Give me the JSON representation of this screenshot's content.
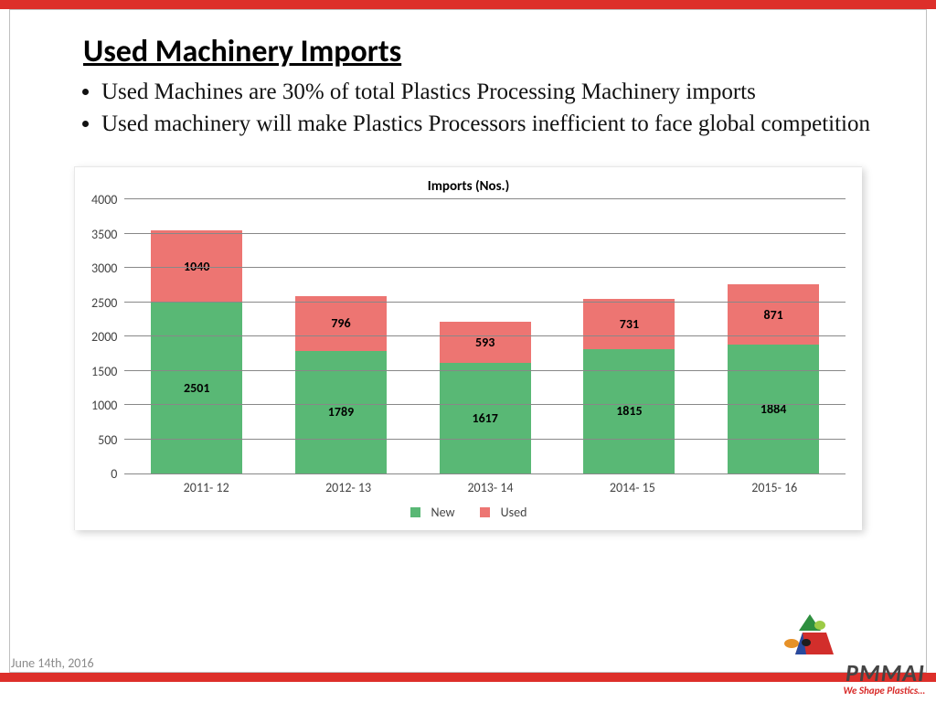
{
  "title": "Used Machinery Imports",
  "bullets": [
    "Used Machines are 30% of total Plastics Processing Machinery imports",
    "Used machinery will make Plastics Processors inefficient to face global competition"
  ],
  "chart": {
    "type": "stacked-bar",
    "title": "Imports (Nos.)",
    "ymax": 4000,
    "ytick_step": 500,
    "yticks": [
      "4000",
      "3500",
      "3000",
      "2500",
      "2000",
      "1500",
      "1000",
      "500",
      "0"
    ],
    "categories": [
      "2011- 12",
      "2012- 13",
      "2013- 14",
      "2014- 15",
      "2015- 16"
    ],
    "series": [
      {
        "name": "New",
        "color": "#59b875",
        "values": [
          2501,
          1789,
          1617,
          1815,
          1884
        ]
      },
      {
        "name": "Used",
        "color": "#ed7572",
        "values": [
          1040,
          796,
          593,
          731,
          871
        ]
      }
    ],
    "grid_color": "#888888",
    "background": "#ffffff",
    "label_fontsize": 14,
    "title_fontsize": 15
  },
  "footer_date": "June 14th, 2016",
  "logo": {
    "text": "PMMAI",
    "tagline": "We Shape Plastics…"
  },
  "colors": {
    "accent_red": "#dd2f2a"
  }
}
